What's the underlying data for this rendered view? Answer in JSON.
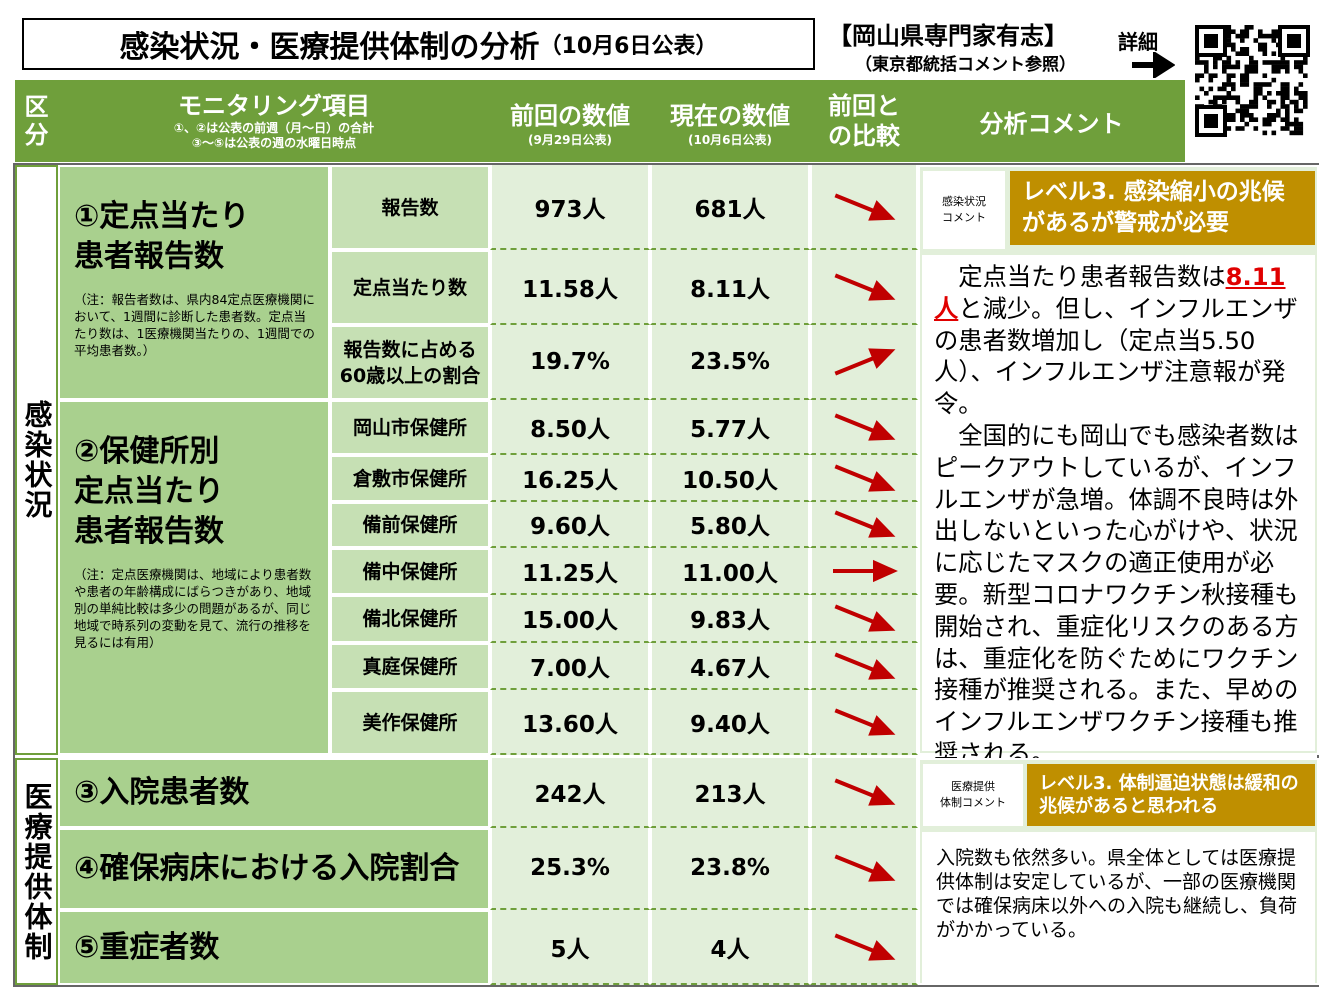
{
  "header": {
    "title": "感染状況・医療提供体制の分析",
    "date": "（10月6日公表）",
    "org": "【岡山県専門家有志】",
    "org_note": "（東京都統括コメント参照）",
    "detail": "詳細"
  },
  "columns": {
    "category": "区\n分",
    "item": "モニタリング項目",
    "item_note": "①、②は公表の前週（月～日）の合計\n③～⑤は公表の週の水曜日時点",
    "prev": "前回の数値",
    "prev_date": "(9月29日公表)",
    "curr": "現在の数値",
    "curr_date": "(10月6日公表)",
    "compare": "前回と\nの比較",
    "comment": "分析コメント"
  },
  "sections": [
    {
      "label": "感染状況",
      "groups": [
        {
          "title": "①定点当たり\n患者報告数",
          "note": "（注：報告者数は、県内84定点医療機関において、1週間に診断した患者数。定点当たり数は、1医療機関当たりの、1週間での平均患者数。）",
          "rows": [
            {
              "sub": "報告数",
              "prev": "973人",
              "curr": "681人",
              "trend": "down"
            },
            {
              "sub": "定点当たり数",
              "prev": "11.58人",
              "curr": "8.11人",
              "trend": "down"
            },
            {
              "sub": "報告数に占める\n60歳以上の割合",
              "prev": "19.7%",
              "curr": "23.5%",
              "trend": "up"
            }
          ]
        },
        {
          "title": "②保健所別\n定点当たり\n患者報告数",
          "note": "（注：定点医療機関は、地域により患者数や患者の年齢構成にばらつきがあり、地域別の単純比較は多少の問題があるが、同じ地域で時系列の変動を見て、流行の推移を見るには有用）",
          "rows": [
            {
              "sub": "岡山市保健所",
              "prev": "8.50人",
              "curr": "5.77人",
              "trend": "down"
            },
            {
              "sub": "倉敷市保健所",
              "prev": "16.25人",
              "curr": "10.50人",
              "trend": "down"
            },
            {
              "sub": "備前保健所",
              "prev": "9.60人",
              "curr": "5.80人",
              "trend": "down"
            },
            {
              "sub": "備中保健所",
              "prev": "11.25人",
              "curr": "11.00人",
              "trend": "flat"
            },
            {
              "sub": "備北保健所",
              "prev": "15.00人",
              "curr": "9.83人",
              "trend": "down"
            },
            {
              "sub": "真庭保健所",
              "prev": "7.00人",
              "curr": "4.67人",
              "trend": "down"
            },
            {
              "sub": "美作保健所",
              "prev": "13.60人",
              "curr": "9.40人",
              "trend": "down"
            }
          ]
        }
      ],
      "comment": {
        "tag": "感染状況\nコメント",
        "level": "レベル3. 感染縮小の兆候があるが警戒が必要",
        "text": [
          "定点当たり患者報告数は",
          "8.11人",
          "と減少。但し、インフルエンザの患者数増加し（定点当5.50人）、インフルエンザ注意報が発令。"
        ],
        "text2": "全国的にも岡山でも感染者数はピークアウトしているが、インフルエンザが急増。体調不良時は外出しないといった心がけや、状況に応じたマスクの適正使用が必要。新型コロナワクチン秋接種も開始され、重症化リスクのある方は、重症化を防ぐためにワクチン接種が推奨される。また、早めのインフルエンザワクチン接種も推奨される。"
      }
    },
    {
      "label": "医療提供体制",
      "groups": [
        {
          "title": "③入院患者数",
          "rows": [
            {
              "prev": "242人",
              "curr": "213人",
              "trend": "down"
            }
          ]
        },
        {
          "title": "④確保病床における入院割合",
          "rows": [
            {
              "prev": "25.3%",
              "curr": "23.8%",
              "trend": "down"
            }
          ]
        },
        {
          "title": "⑤重症者数",
          "rows": [
            {
              "prev": "5人",
              "curr": "4人",
              "trend": "down"
            }
          ]
        }
      ],
      "comment": {
        "tag": "医療提供\n体制コメント",
        "level": "レベル3. 体制逼迫状態は緩和の兆候があると思われる",
        "text": [
          "入院数も依然多い。県全体としては医療提供体制は安定しているが、一部の医療機関では確保病床以外への入院も継続し、負荷がかかっている。"
        ]
      }
    }
  ]
}
